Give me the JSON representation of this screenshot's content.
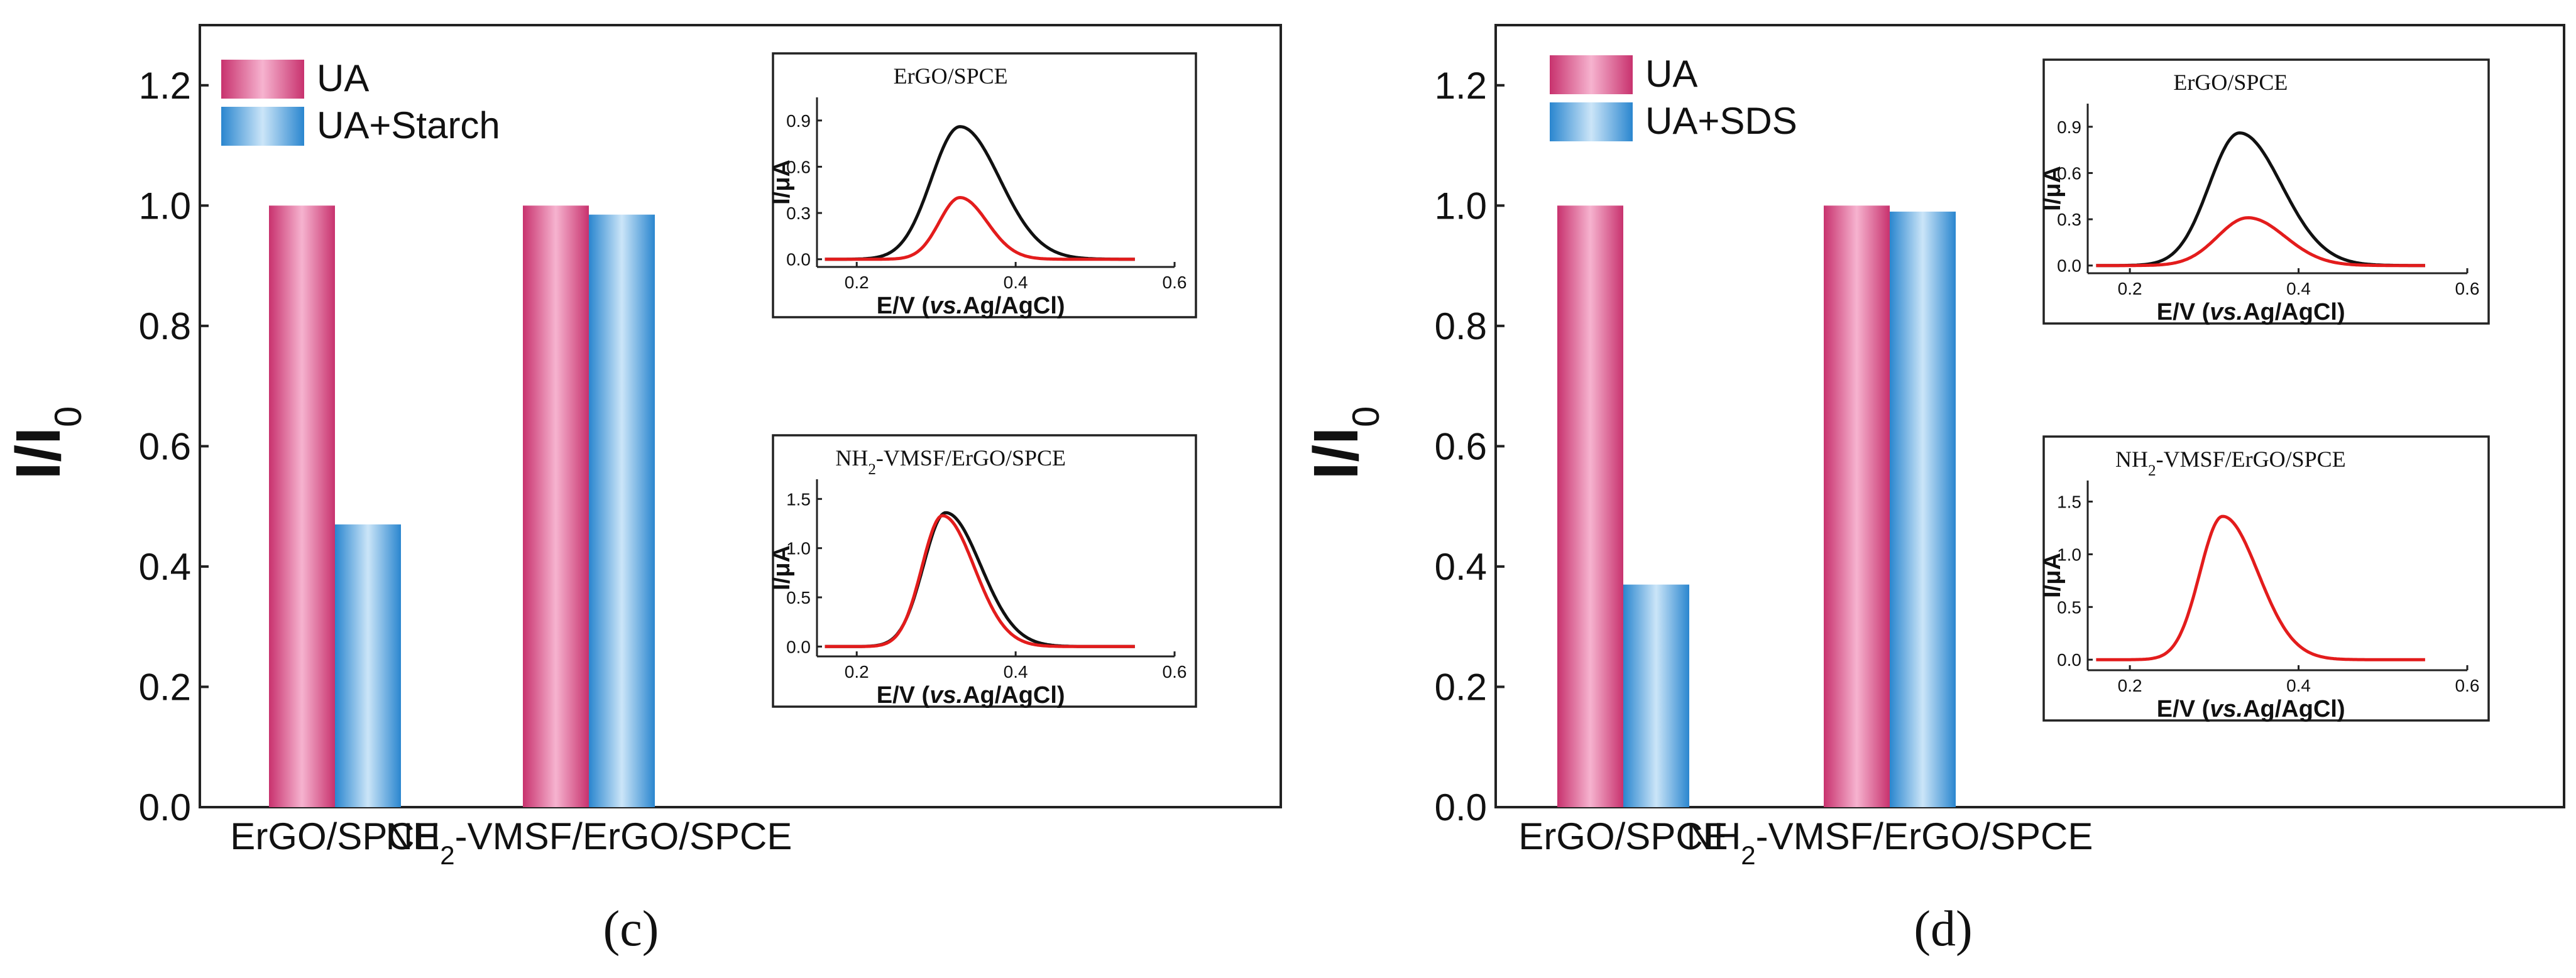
{
  "chart_data": [
    {
      "type": "bar",
      "panel_label": "(c)",
      "ylabel_main": "I/I",
      "ylabel_sub": "0",
      "ylim": [
        0,
        1.3
      ],
      "yticks": [
        "0.0",
        "0.2",
        "0.4",
        "0.6",
        "0.8",
        "1.0",
        "1.2"
      ],
      "categories": [
        {
          "pre": "ErGO/SPCE",
          "sub": "",
          "post": ""
        },
        {
          "pre": "NH",
          "sub": "2",
          "post": "-VMSF/ErGO/SPCE"
        }
      ],
      "series": [
        {
          "name": "UA",
          "values": [
            1.0,
            1.0
          ]
        },
        {
          "name": "UA+Starch",
          "values": [
            0.47,
            0.985
          ]
        }
      ],
      "insets": [
        {
          "type": "line",
          "title": {
            "pre": "ErGO/SPCE",
            "sub": "",
            "post": ""
          },
          "xlabel": {
            "pre": "E/V (",
            "italic": "vs.",
            "post": "Ag/AgCl)"
          },
          "ylabel": "I/μA",
          "xlim": [
            0.15,
            0.6
          ],
          "ylim": [
            -0.05,
            1.05
          ],
          "xticks": [
            "0.2",
            "0.4",
            "0.6"
          ],
          "yticks": [
            "0.0",
            "0.3",
            "0.6",
            "0.9"
          ],
          "curves": [
            {
              "name": "black",
              "color": "#111111",
              "peak_x": 0.33,
              "peak_y": 0.86,
              "width_left": 0.036,
              "width_right": 0.05
            },
            {
              "name": "red",
              "color": "#e31c1c",
              "peak_x": 0.33,
              "peak_y": 0.4,
              "width_left": 0.026,
              "width_right": 0.034
            }
          ]
        },
        {
          "type": "line",
          "title": {
            "pre": "NH",
            "sub": "2",
            "post": "-VMSF/ErGO/SPCE"
          },
          "xlabel": {
            "pre": "E/V (",
            "italic": "vs.",
            "post": "Ag/AgCl)"
          },
          "ylabel": "I/μA",
          "xlim": [
            0.15,
            0.6
          ],
          "ylim": [
            -0.1,
            1.7
          ],
          "xticks": [
            "0.2",
            "0.4",
            "0.6"
          ],
          "yticks": [
            "0.0",
            "0.5",
            "1.0",
            "1.5"
          ],
          "curves": [
            {
              "name": "black",
              "color": "#111111",
              "peak_x": 0.312,
              "peak_y": 1.36,
              "width_left": 0.028,
              "width_right": 0.044
            },
            {
              "name": "red",
              "color": "#e31c1c",
              "peak_x": 0.308,
              "peak_y": 1.33,
              "width_left": 0.026,
              "width_right": 0.04
            }
          ]
        }
      ]
    },
    {
      "type": "bar",
      "panel_label": "(d)",
      "ylabel_main": "I/I",
      "ylabel_sub": "0",
      "ylim": [
        0,
        1.3
      ],
      "yticks": [
        "0.0",
        "0.2",
        "0.4",
        "0.6",
        "0.8",
        "1.0",
        "1.2"
      ],
      "categories": [
        {
          "pre": "ErGO/SPCE",
          "sub": "",
          "post": ""
        },
        {
          "pre": "NH",
          "sub": "2",
          "post": "-VMSF/ErGO/SPCE"
        }
      ],
      "series": [
        {
          "name": "UA",
          "values": [
            1.0,
            1.0
          ]
        },
        {
          "name": "UA+SDS",
          "values": [
            0.37,
            0.99
          ]
        }
      ],
      "insets": [
        {
          "type": "line",
          "title": {
            "pre": "ErGO/SPCE",
            "sub": "",
            "post": ""
          },
          "xlabel": {
            "pre": "E/V (",
            "italic": "vs.",
            "post": "Ag/AgCl)"
          },
          "ylabel": "I/μA",
          "xlim": [
            0.15,
            0.6
          ],
          "ylim": [
            -0.05,
            1.05
          ],
          "xticks": [
            "0.2",
            "0.4",
            "0.6"
          ],
          "yticks": [
            "0.0",
            "0.3",
            "0.6",
            "0.9"
          ],
          "curves": [
            {
              "name": "black",
              "color": "#111111",
              "peak_x": 0.33,
              "peak_y": 0.86,
              "width_left": 0.036,
              "width_right": 0.05
            },
            {
              "name": "red",
              "color": "#e31c1c",
              "peak_x": 0.34,
              "peak_y": 0.31,
              "width_left": 0.036,
              "width_right": 0.044
            }
          ]
        },
        {
          "type": "line",
          "title": {
            "pre": "NH",
            "sub": "2",
            "post": "-VMSF/ErGO/SPCE"
          },
          "xlabel": {
            "pre": "E/V (",
            "italic": "vs.",
            "post": "Ag/AgCl)"
          },
          "ylabel": "I/μA",
          "xlim": [
            0.15,
            0.6
          ],
          "ylim": [
            -0.1,
            1.7
          ],
          "xticks": [
            "0.2",
            "0.4",
            "0.6"
          ],
          "yticks": [
            "0.0",
            "0.5",
            "1.0",
            "1.5"
          ],
          "curves": [
            {
              "name": "red",
              "color": "#e31c1c",
              "peak_x": 0.31,
              "peak_y": 1.36,
              "width_left": 0.027,
              "width_right": 0.042
            }
          ]
        }
      ]
    }
  ],
  "colors": {
    "ua_dark": "#c8326e",
    "ua_light": "#f6b3cf",
    "mod_dark": "#2a86cf",
    "mod_light": "#cbe5f8"
  }
}
